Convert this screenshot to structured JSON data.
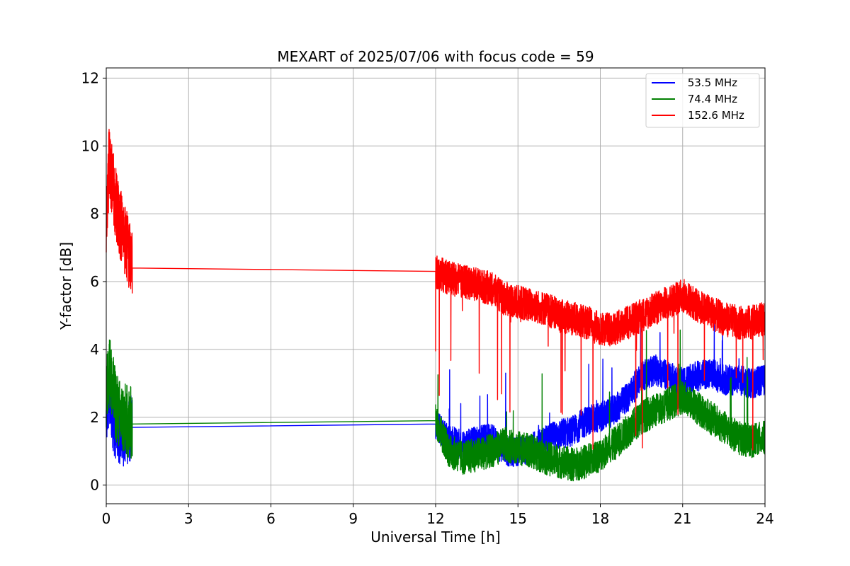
{
  "chart_data": {
    "type": "line",
    "title": "MEXART of 2025/07/06 with focus code = 59",
    "xlabel": "Universal Time [h]",
    "ylabel": "Y-factor [dB]",
    "xlim": [
      0,
      24
    ],
    "ylim": [
      -0.55,
      12.3
    ],
    "x_ticks": [
      0,
      3,
      6,
      9,
      12,
      15,
      18,
      21,
      24
    ],
    "y_ticks": [
      0,
      2,
      4,
      6,
      8,
      10,
      12
    ],
    "grid": true,
    "legend_position": "top-right",
    "series": [
      {
        "name": " 53.5 MHz",
        "color": "#0000ff",
        "noise": 0.45,
        "x": [
          0.0,
          0.1,
          0.3,
          0.5,
          0.7,
          0.95,
          12.0,
          12.5,
          13.0,
          13.5,
          14.0,
          14.5,
          15.0,
          15.5,
          16.0,
          16.5,
          17.0,
          17.5,
          18.0,
          18.5,
          19.0,
          19.5,
          20.0,
          20.5,
          21.0,
          21.5,
          22.0,
          22.5,
          23.0,
          23.5,
          24.0
        ],
        "y": [
          1.9,
          2.6,
          1.8,
          1.6,
          1.5,
          1.7,
          1.8,
          1.3,
          1.2,
          1.3,
          1.4,
          1.0,
          1.0,
          1.1,
          1.3,
          1.5,
          1.6,
          1.9,
          2.0,
          2.2,
          2.6,
          3.2,
          3.4,
          3.2,
          3.0,
          3.2,
          3.3,
          3.1,
          3.1,
          3.0,
          3.1
        ]
      },
      {
        "name": " 74.4 MHz",
        "color": "#008000",
        "noise": 0.5,
        "x": [
          0.0,
          0.1,
          0.3,
          0.5,
          0.7,
          0.95,
          12.0,
          12.5,
          13.0,
          13.5,
          14.0,
          14.5,
          15.0,
          15.5,
          16.0,
          16.5,
          17.0,
          17.5,
          18.0,
          18.5,
          19.0,
          19.5,
          20.0,
          20.5,
          21.0,
          21.5,
          22.0,
          22.5,
          23.0,
          23.5,
          24.0
        ],
        "y": [
          2.5,
          3.5,
          2.5,
          2.0,
          1.9,
          1.8,
          1.9,
          1.0,
          0.8,
          0.9,
          1.0,
          1.2,
          1.1,
          1.0,
          0.8,
          0.7,
          0.6,
          0.7,
          0.9,
          1.2,
          1.6,
          2.0,
          2.2,
          2.4,
          2.6,
          2.3,
          2.0,
          1.7,
          1.4,
          1.3,
          1.4
        ]
      },
      {
        "name": "152.6 MHz",
        "color": "#ff0000",
        "noise": 0.5,
        "x": [
          0.0,
          0.1,
          0.3,
          0.5,
          0.7,
          0.95,
          12.0,
          12.5,
          13.0,
          13.5,
          14.0,
          14.5,
          15.0,
          15.5,
          16.0,
          16.5,
          17.0,
          17.5,
          18.0,
          18.5,
          19.0,
          19.5,
          20.0,
          20.5,
          21.0,
          21.5,
          22.0,
          22.5,
          23.0,
          23.5,
          24.0
        ],
        "y": [
          7.5,
          9.5,
          8.5,
          7.8,
          7.2,
          6.4,
          6.3,
          6.1,
          6.0,
          5.9,
          5.8,
          5.5,
          5.4,
          5.3,
          5.2,
          5.0,
          4.9,
          4.8,
          4.6,
          4.6,
          4.8,
          5.0,
          5.2,
          5.4,
          5.6,
          5.3,
          5.1,
          4.9,
          4.8,
          4.8,
          4.9
        ]
      }
    ]
  }
}
